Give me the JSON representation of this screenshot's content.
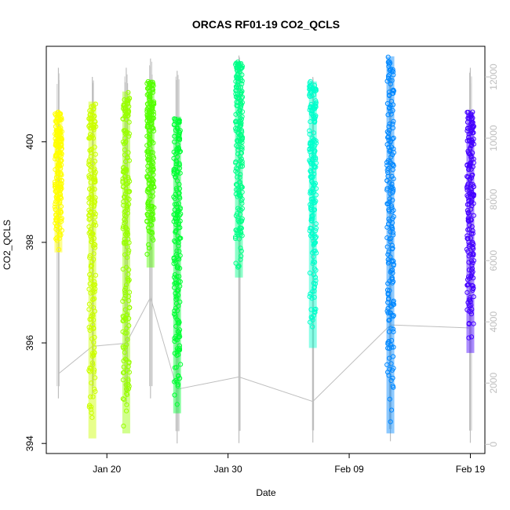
{
  "chart_data": {
    "type": "scatter",
    "title": "ORCAS RF01-19 CO2_QCLS",
    "xlabel": "Date",
    "ylabel": "CO2_QCLS",
    "x_ticks": [
      {
        "label": "Jan 20",
        "day": 20
      },
      {
        "label": "Jan 30",
        "day": 30
      },
      {
        "label": "Feb 09",
        "day": 40
      },
      {
        "label": "Feb 19",
        "day": 50
      }
    ],
    "xlim_days": [
      15.0,
      51.2
    ],
    "ylim": [
      393.8,
      401.9
    ],
    "y_ticks": [
      394,
      396,
      398,
      400
    ],
    "y2_ticks": [
      0,
      2000,
      4000,
      6000,
      8000,
      10000,
      12000
    ],
    "y2lim": [
      -300,
      13000
    ],
    "y2_color": "#bebebe",
    "grid": false,
    "flights": [
      {
        "day": 16.0,
        "co2_min": 397.8,
        "co2_max": 400.6,
        "alt_min": 1500,
        "alt_max": 12300,
        "alt_anchor": 2300,
        "color": "#ffff00"
      },
      {
        "day": 18.8,
        "co2_min": 394.1,
        "co2_max": 400.8,
        "alt_min": 1500,
        "alt_max": 12000,
        "alt_anchor": 3200,
        "color": "#ccff00"
      },
      {
        "day": 21.6,
        "co2_min": 394.2,
        "co2_max": 401.0,
        "alt_min": 1300,
        "alt_max": 12300,
        "alt_anchor": 3300,
        "color": "#99ff00"
      },
      {
        "day": 23.6,
        "co2_min": 397.5,
        "co2_max": 401.2,
        "alt_min": 1500,
        "alt_max": 12600,
        "alt_anchor": 4800,
        "color": "#55ff00"
      },
      {
        "day": 25.8,
        "co2_min": 394.6,
        "co2_max": 400.5,
        "alt_min": 30,
        "alt_max": 12200,
        "alt_anchor": 1800,
        "color": "#00ff33"
      },
      {
        "day": 30.9,
        "co2_min": 397.3,
        "co2_max": 401.6,
        "alt_min": 40,
        "alt_max": 12700,
        "alt_anchor": 2200,
        "color": "#00ff88"
      },
      {
        "day": 37.0,
        "co2_min": 395.9,
        "co2_max": 401.2,
        "alt_min": 60,
        "alt_max": 12000,
        "alt_anchor": 1400,
        "color": "#00ffcc"
      },
      {
        "day": 43.4,
        "co2_min": 394.2,
        "co2_max": 401.7,
        "alt_min": 100,
        "alt_max": 12000,
        "alt_anchor": 3900,
        "color": "#0088ff"
      },
      {
        "day": 50.0,
        "co2_min": 395.8,
        "co2_max": 400.6,
        "alt_min": 50,
        "alt_max": 12300,
        "alt_anchor": 3800,
        "color": "#4400ff"
      }
    ]
  }
}
